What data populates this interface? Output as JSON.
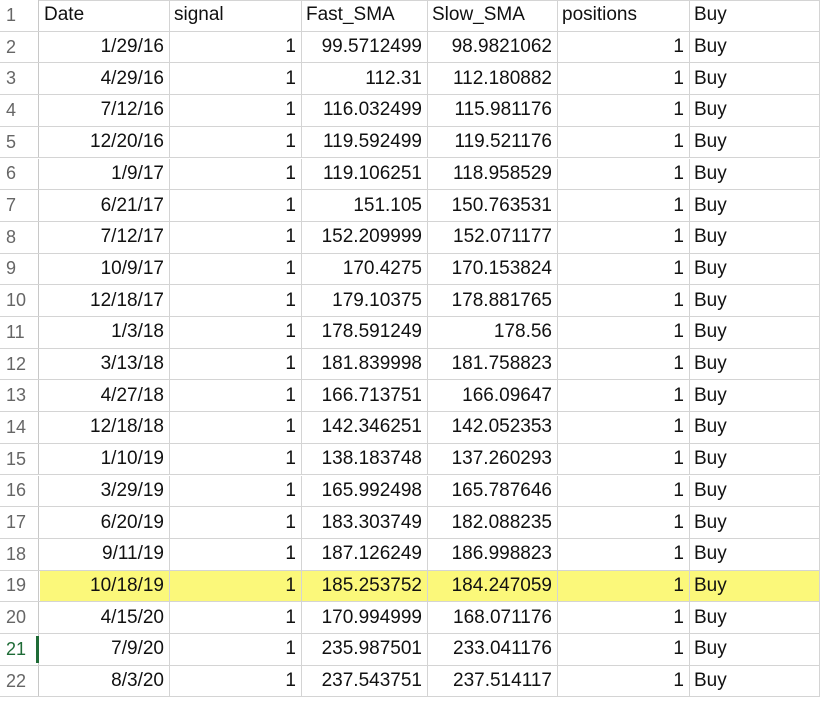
{
  "sheet": {
    "headers": [
      "Date",
      "signal",
      "Fast_SMA",
      "Slow_SMA",
      "positions",
      "Buy"
    ],
    "header_row_number": "1",
    "highlight_color": "#fbf87a",
    "active_row_number": "21",
    "rows": [
      {
        "n": "2",
        "date": "1/29/16",
        "signal": "1",
        "fast": "99.5712499",
        "slow": "98.9821062",
        "positions": "1",
        "action": "Buy"
      },
      {
        "n": "3",
        "date": "4/29/16",
        "signal": "1",
        "fast": "112.31",
        "slow": "112.180882",
        "positions": "1",
        "action": "Buy"
      },
      {
        "n": "4",
        "date": "7/12/16",
        "signal": "1",
        "fast": "116.032499",
        "slow": "115.981176",
        "positions": "1",
        "action": "Buy"
      },
      {
        "n": "5",
        "date": "12/20/16",
        "signal": "1",
        "fast": "119.592499",
        "slow": "119.521176",
        "positions": "1",
        "action": "Buy"
      },
      {
        "n": "6",
        "date": "1/9/17",
        "signal": "1",
        "fast": "119.106251",
        "slow": "118.958529",
        "positions": "1",
        "action": "Buy"
      },
      {
        "n": "7",
        "date": "6/21/17",
        "signal": "1",
        "fast": "151.105",
        "slow": "150.763531",
        "positions": "1",
        "action": "Buy"
      },
      {
        "n": "8",
        "date": "7/12/17",
        "signal": "1",
        "fast": "152.209999",
        "slow": "152.071177",
        "positions": "1",
        "action": "Buy"
      },
      {
        "n": "9",
        "date": "10/9/17",
        "signal": "1",
        "fast": "170.4275",
        "slow": "170.153824",
        "positions": "1",
        "action": "Buy"
      },
      {
        "n": "10",
        "date": "12/18/17",
        "signal": "1",
        "fast": "179.10375",
        "slow": "178.881765",
        "positions": "1",
        "action": "Buy"
      },
      {
        "n": "11",
        "date": "1/3/18",
        "signal": "1",
        "fast": "178.591249",
        "slow": "178.56",
        "positions": "1",
        "action": "Buy"
      },
      {
        "n": "12",
        "date": "3/13/18",
        "signal": "1",
        "fast": "181.839998",
        "slow": "181.758823",
        "positions": "1",
        "action": "Buy"
      },
      {
        "n": "13",
        "date": "4/27/18",
        "signal": "1",
        "fast": "166.713751",
        "slow": "166.09647",
        "positions": "1",
        "action": "Buy"
      },
      {
        "n": "14",
        "date": "12/18/18",
        "signal": "1",
        "fast": "142.346251",
        "slow": "142.052353",
        "positions": "1",
        "action": "Buy"
      },
      {
        "n": "15",
        "date": "1/10/19",
        "signal": "1",
        "fast": "138.183748",
        "slow": "137.260293",
        "positions": "1",
        "action": "Buy"
      },
      {
        "n": "16",
        "date": "3/29/19",
        "signal": "1",
        "fast": "165.992498",
        "slow": "165.787646",
        "positions": "1",
        "action": "Buy"
      },
      {
        "n": "17",
        "date": "6/20/19",
        "signal": "1",
        "fast": "183.303749",
        "slow": "182.088235",
        "positions": "1",
        "action": "Buy"
      },
      {
        "n": "18",
        "date": "9/11/19",
        "signal": "1",
        "fast": "187.126249",
        "slow": "186.998823",
        "positions": "1",
        "action": "Buy"
      },
      {
        "n": "19",
        "date": "10/18/19",
        "signal": "1",
        "fast": "185.253752",
        "slow": "184.247059",
        "positions": "1",
        "action": "Buy",
        "highlighted": true
      },
      {
        "n": "20",
        "date": "4/15/20",
        "signal": "1",
        "fast": "170.994999",
        "slow": "168.071176",
        "positions": "1",
        "action": "Buy"
      },
      {
        "n": "21",
        "date": "7/9/20",
        "signal": "1",
        "fast": "235.987501",
        "slow": "233.041176",
        "positions": "1",
        "action": "Buy"
      },
      {
        "n": "22",
        "date": "8/3/20",
        "signal": "1",
        "fast": "237.543751",
        "slow": "237.514117",
        "positions": "1",
        "action": "Buy"
      }
    ]
  }
}
